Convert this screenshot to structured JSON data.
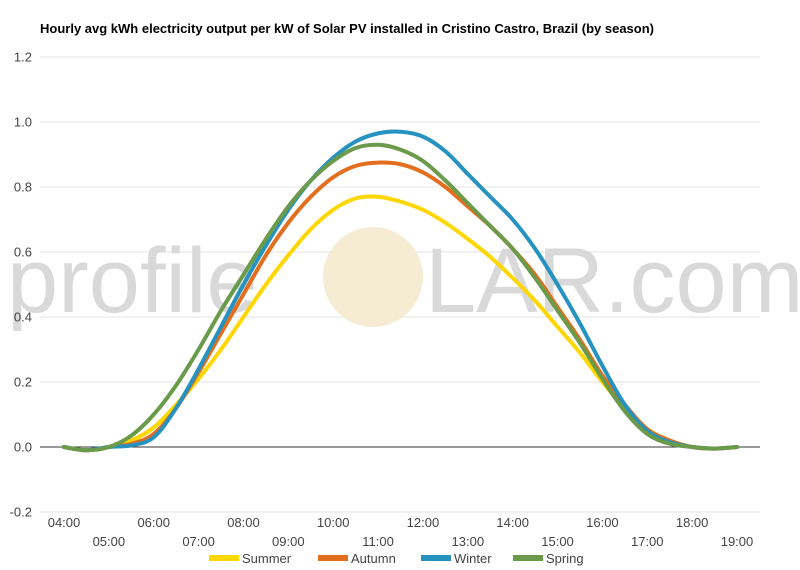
{
  "chart_data": {
    "type": "line",
    "title": "Hourly avg kWh electricity output per kW of Solar PV installed in Cristino Castro, Brazil (by season)",
    "watermark": {
      "left": "profile",
      "right": "LAR.com"
    },
    "x": [
      "04:00",
      "04:30",
      "05:00",
      "05:30",
      "06:00",
      "06:30",
      "07:00",
      "07:30",
      "08:00",
      "08:30",
      "09:00",
      "09:30",
      "10:00",
      "10:30",
      "11:00",
      "11:30",
      "12:00",
      "12:30",
      "13:00",
      "13:30",
      "14:00",
      "14:30",
      "15:00",
      "15:30",
      "16:00",
      "16:30",
      "17:00",
      "17:30",
      "18:00",
      "18:30",
      "19:00"
    ],
    "x_tick_labels": [
      "04:00",
      "05:00",
      "06:00",
      "07:00",
      "08:00",
      "09:00",
      "10:00",
      "11:00",
      "12:00",
      "13:00",
      "14:00",
      "15:00",
      "16:00",
      "17:00",
      "18:00",
      "19:00"
    ],
    "y_tick_labels": [
      "1.2",
      "1.0",
      "0.8",
      "0.6",
      "0.4",
      "0.2",
      "0.0",
      "-0.2"
    ],
    "ylim": [
      -0.2,
      1.2
    ],
    "grid": true,
    "legend": "bottom",
    "series": [
      {
        "name": "Summer",
        "color": "#FFD700",
        "values": [
          0,
          -0.01,
          0,
          0.02,
          0.06,
          0.13,
          0.21,
          0.3,
          0.4,
          0.5,
          0.59,
          0.67,
          0.73,
          0.765,
          0.77,
          0.755,
          0.73,
          0.69,
          0.64,
          0.585,
          0.52,
          0.45,
          0.37,
          0.29,
          0.2,
          0.12,
          0.055,
          0.02,
          0,
          -0.005,
          0
        ]
      },
      {
        "name": "Autumn",
        "color": "#E36F1E",
        "values": [
          0,
          -0.01,
          0,
          0.01,
          0.04,
          0.12,
          0.23,
          0.35,
          0.47,
          0.59,
          0.69,
          0.77,
          0.83,
          0.865,
          0.875,
          0.87,
          0.845,
          0.8,
          0.74,
          0.68,
          0.61,
          0.53,
          0.43,
          0.33,
          0.22,
          0.13,
          0.055,
          0.02,
          0,
          -0.005,
          0
        ]
      },
      {
        "name": "Winter",
        "color": "#2592BF",
        "values": [
          0,
          -0.01,
          0,
          0.005,
          0.03,
          0.12,
          0.24,
          0.37,
          0.5,
          0.62,
          0.73,
          0.82,
          0.89,
          0.94,
          0.965,
          0.97,
          0.955,
          0.91,
          0.84,
          0.77,
          0.7,
          0.61,
          0.5,
          0.38,
          0.25,
          0.13,
          0.05,
          0.015,
          0,
          -0.005,
          0
        ]
      },
      {
        "name": "Spring",
        "color": "#6A9A4A",
        "values": [
          0,
          -0.01,
          0,
          0.035,
          0.1,
          0.19,
          0.3,
          0.42,
          0.53,
          0.64,
          0.74,
          0.82,
          0.88,
          0.92,
          0.93,
          0.915,
          0.88,
          0.82,
          0.75,
          0.68,
          0.61,
          0.52,
          0.42,
          0.32,
          0.21,
          0.11,
          0.04,
          0.01,
          0,
          -0.005,
          0
        ]
      }
    ]
  }
}
